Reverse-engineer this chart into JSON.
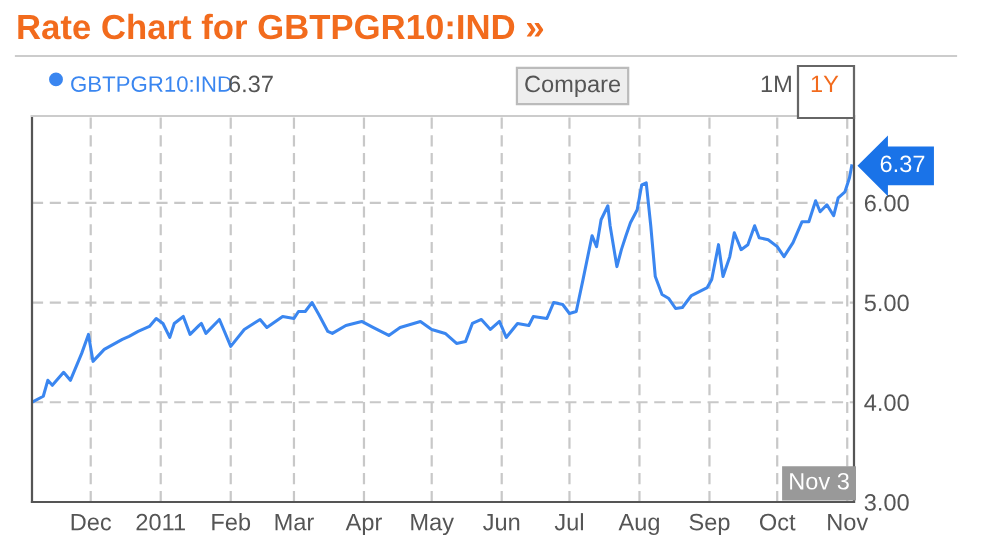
{
  "chart_data": {
    "type": "line",
    "title": "Rate Chart for GBTPGR10:IND »",
    "x": [
      "2010-11-05",
      "2010-11-10",
      "2010-11-12",
      "2010-11-14",
      "2010-11-19",
      "2010-11-22",
      "2010-11-27",
      "2010-11-30",
      "2010-12-02",
      "2010-12-07",
      "2010-12-15",
      "2010-12-18",
      "2010-12-22",
      "2010-12-27",
      "2010-12-30",
      "2011-01-02",
      "2011-01-05",
      "2011-01-07",
      "2011-01-11",
      "2011-01-14",
      "2011-01-18",
      "2011-01-19",
      "2011-01-21",
      "2011-01-27",
      "2011-02-01",
      "2011-02-07",
      "2011-02-14",
      "2011-02-17",
      "2011-02-24",
      "2011-03-01",
      "2011-03-03",
      "2011-03-06",
      "2011-03-09",
      "2011-03-12",
      "2011-03-16",
      "2011-03-18",
      "2011-03-24",
      "2011-03-31",
      "2011-04-05",
      "2011-04-12",
      "2011-04-17",
      "2011-04-26",
      "2011-05-01",
      "2011-05-07",
      "2011-05-12",
      "2011-05-16",
      "2011-05-19",
      "2011-05-23",
      "2011-05-27",
      "2011-05-31",
      "2011-06-03",
      "2011-06-08",
      "2011-06-13",
      "2011-06-15",
      "2011-06-21",
      "2011-06-24",
      "2011-06-28",
      "2011-07-01",
      "2011-07-04",
      "2011-07-07",
      "2011-07-11",
      "2011-07-13",
      "2011-07-15",
      "2011-07-18",
      "2011-07-19",
      "2011-07-22",
      "2011-07-24",
      "2011-07-26",
      "2011-07-28",
      "2011-07-31",
      "2011-08-02",
      "2011-08-04",
      "2011-08-06",
      "2011-08-08",
      "2011-08-11",
      "2011-08-14",
      "2011-08-17",
      "2011-08-20",
      "2011-08-24",
      "2011-08-31",
      "2011-09-02",
      "2011-09-05",
      "2011-09-07",
      "2011-09-10",
      "2011-09-12",
      "2011-09-15",
      "2011-09-18",
      "2011-09-21",
      "2011-09-23",
      "2011-09-27",
      "2011-10-01",
      "2011-10-04",
      "2011-10-08",
      "2011-10-12",
      "2011-10-15",
      "2011-10-18",
      "2011-10-20",
      "2011-10-23",
      "2011-10-26",
      "2011-10-28",
      "2011-10-31",
      "2011-11-02",
      "2011-11-03"
    ],
    "series": [
      {
        "name": "GBTPGR10:IND",
        "color": "#3a86f0",
        "values": [
          4.0,
          4.06,
          4.22,
          4.17,
          4.3,
          4.22,
          4.49,
          4.68,
          4.41,
          4.53,
          4.63,
          4.66,
          4.71,
          4.76,
          4.84,
          4.79,
          4.65,
          4.79,
          4.86,
          4.68,
          4.77,
          4.79,
          4.69,
          4.83,
          4.56,
          4.73,
          4.83,
          4.75,
          4.86,
          4.84,
          4.91,
          4.91,
          5.0,
          4.88,
          4.71,
          4.69,
          4.77,
          4.81,
          4.75,
          4.67,
          4.75,
          4.81,
          4.73,
          4.69,
          4.59,
          4.61,
          4.79,
          4.83,
          4.73,
          4.81,
          4.65,
          4.79,
          4.77,
          4.86,
          4.84,
          5.0,
          4.98,
          4.89,
          4.91,
          5.23,
          5.67,
          5.56,
          5.83,
          5.97,
          5.77,
          5.36,
          5.53,
          5.67,
          5.8,
          5.93,
          6.18,
          6.2,
          5.77,
          5.26,
          5.08,
          5.04,
          4.94,
          4.95,
          5.07,
          5.15,
          5.23,
          5.58,
          5.26,
          5.46,
          5.7,
          5.53,
          5.58,
          5.77,
          5.65,
          5.63,
          5.56,
          5.46,
          5.6,
          5.81,
          5.81,
          6.02,
          5.91,
          5.98,
          5.87,
          6.05,
          6.11,
          6.25,
          6.37
        ]
      }
    ],
    "xlim": [
      "2010-11-05",
      "2011-11-04"
    ],
    "xticks": [
      {
        "value": "2010-12-01",
        "label": "Dec"
      },
      {
        "value": "2011-01-01",
        "label": "2011"
      },
      {
        "value": "2011-02-01",
        "label": "Feb"
      },
      {
        "value": "2011-03-01",
        "label": "Mar"
      },
      {
        "value": "2011-04-01",
        "label": "Apr"
      },
      {
        "value": "2011-05-01",
        "label": "May"
      },
      {
        "value": "2011-06-01",
        "label": "Jun"
      },
      {
        "value": "2011-07-01",
        "label": "Jul"
      },
      {
        "value": "2011-08-01",
        "label": "Aug"
      },
      {
        "value": "2011-09-01",
        "label": "Sep"
      },
      {
        "value": "2011-10-01",
        "label": "Oct"
      },
      {
        "value": "2011-11-01",
        "label": "Nov"
      }
    ],
    "ylim": [
      3,
      6.87
    ],
    "yticks": [
      {
        "value": 3,
        "label": "3.00"
      },
      {
        "value": 4,
        "label": "4.00"
      },
      {
        "value": 5,
        "label": "5.00"
      },
      {
        "value": 6,
        "label": "6.00"
      }
    ],
    "grid": true,
    "legend": "top left",
    "line_style": "solid",
    "marker": "none",
    "annotations": [
      "6.37",
      "Compare",
      "1M",
      "1Y",
      {
        "text": "6.37",
        "x": "2011-11-03",
        "y": 6.37
      },
      "Nov 3"
    ]
  }
}
